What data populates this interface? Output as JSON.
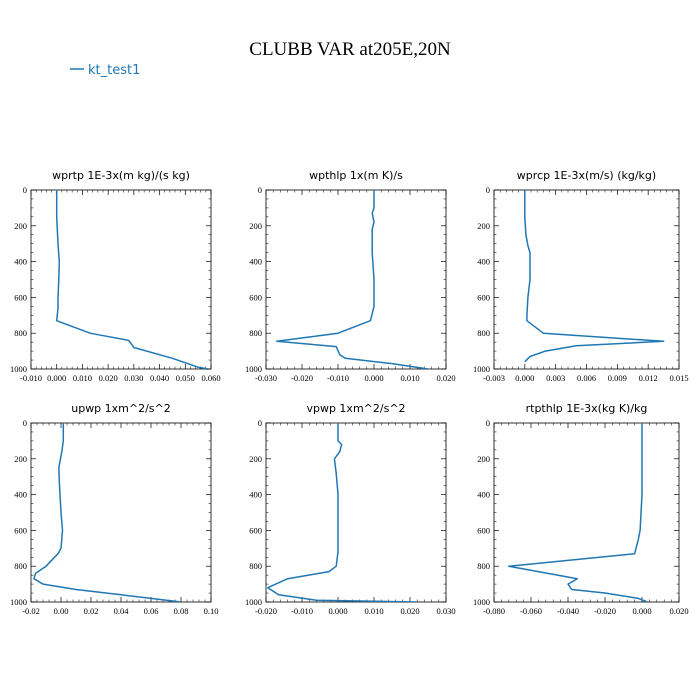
{
  "figure": {
    "title": "CLUBB VAR at205E,20N",
    "legend": {
      "label": "kt_test1",
      "color": "#1f77b4"
    }
  },
  "chart_data": [
    {
      "type": "line",
      "title": "wprtp   1E-3x(m kg)/(s kg)",
      "xlim": [
        -0.01,
        0.06
      ],
      "ylim": [
        1000,
        0
      ],
      "xticks": [
        "-0.010",
        "0.000",
        "0.010",
        "0.020",
        "0.030",
        "0.040",
        "0.050",
        "0.060"
      ],
      "yticks": [
        "0",
        "200",
        "400",
        "600",
        "800",
        "1000"
      ],
      "series": [
        {
          "name": "kt_test1",
          "color": "#1f77b4",
          "x": [
            0.0,
            0.0,
            0.0005,
            0.001,
            0.0008,
            0.0005,
            0.0005,
            0.0,
            0.013,
            0.028,
            0.03,
            0.045,
            0.055,
            0.059
          ],
          "y": [
            0,
            150,
            300,
            400,
            500,
            600,
            660,
            730,
            800,
            840,
            880,
            940,
            990,
            1000
          ]
        }
      ]
    },
    {
      "type": "line",
      "title": "wpthlp   1x(m K)/s",
      "xlim": [
        -0.03,
        0.02
      ],
      "ylim": [
        1000,
        0
      ],
      "xticks": [
        "-0.030",
        "-0.020",
        "-0.010",
        "0.000",
        "0.010",
        "0.020"
      ],
      "yticks": [
        "0",
        "200",
        "400",
        "600",
        "800",
        "1000"
      ],
      "series": [
        {
          "name": "kt_test1",
          "color": "#1f77b4",
          "x": [
            0.0,
            0.0,
            -0.0005,
            0.0,
            -0.0005,
            -0.0005,
            0.0,
            0.0,
            -0.001,
            -0.01,
            -0.027,
            -0.0105,
            -0.0095,
            -0.008,
            0.005,
            0.015
          ],
          "y": [
            0,
            100,
            130,
            180,
            220,
            350,
            500,
            650,
            730,
            800,
            845,
            875,
            920,
            940,
            970,
            1000
          ]
        }
      ]
    },
    {
      "type": "line",
      "title": "wprcp   1E-3x(m/s) (kg/kg)",
      "xlim": [
        -0.003,
        0.015
      ],
      "ylim": [
        1000,
        0
      ],
      "xticks": [
        "-0.003",
        "0.000",
        "0.003",
        "0.006",
        "0.009",
        "0.012",
        "0.015"
      ],
      "yticks": [
        "0",
        "200",
        "400",
        "600",
        "800",
        "1000"
      ],
      "series": [
        {
          "name": "kt_test1",
          "color": "#1f77b4",
          "x": [
            0.0,
            0.0,
            0.0001,
            0.0003,
            0.0005,
            0.0005,
            0.0003,
            0.0002,
            0.0002,
            0.0018,
            0.0135,
            0.005,
            0.002,
            0.0005,
            0.0
          ],
          "y": [
            0,
            150,
            250,
            310,
            350,
            500,
            600,
            700,
            730,
            800,
            845,
            870,
            900,
            930,
            960
          ]
        }
      ]
    },
    {
      "type": "line",
      "title": "upwp   1xm^2/s^2",
      "xlim": [
        -0.02,
        0.1
      ],
      "ylim": [
        1000,
        0
      ],
      "xticks": [
        "-0.02",
        "0.00",
        "0.02",
        "0.04",
        "0.06",
        "0.08",
        "0.10"
      ],
      "yticks": [
        "0",
        "200",
        "400",
        "600",
        "800",
        "1000"
      ],
      "series": [
        {
          "name": "kt_test1",
          "color": "#1f77b4",
          "x": [
            0.0015,
            0.0015,
            0.0005,
            -0.0015,
            -0.001,
            0.0,
            0.001,
            0.0,
            -0.002,
            -0.01,
            -0.017,
            -0.018,
            -0.012,
            0.01,
            0.04,
            0.08
          ],
          "y": [
            0,
            100,
            160,
            250,
            350,
            500,
            600,
            700,
            730,
            800,
            840,
            870,
            900,
            930,
            960,
            1000
          ]
        }
      ]
    },
    {
      "type": "line",
      "title": "vpwp   1xm^2/s^2",
      "xlim": [
        -0.02,
        0.03
      ],
      "ylim": [
        1000,
        0
      ],
      "xticks": [
        "-0.020",
        "-0.010",
        "0.000",
        "0.010",
        "0.020",
        "0.030"
      ],
      "yticks": [
        "0",
        "200",
        "400",
        "600",
        "800",
        "1000"
      ],
      "series": [
        {
          "name": "kt_test1",
          "color": "#1f77b4",
          "x": [
            0.0,
            0.0,
            0.001,
            0.0005,
            -0.001,
            -0.0005,
            0.0,
            0.0,
            0.0,
            -0.0005,
            -0.0025,
            -0.014,
            -0.0195,
            -0.0165,
            -0.006,
            0.022
          ],
          "y": [
            0,
            100,
            120,
            160,
            200,
            280,
            400,
            600,
            720,
            800,
            830,
            870,
            920,
            960,
            990,
            1000
          ]
        }
      ]
    },
    {
      "type": "line",
      "title": "rtpthlp   1E-3x(kg K)/kg",
      "xlim": [
        -0.08,
        0.02
      ],
      "ylim": [
        1000,
        0
      ],
      "xticks": [
        "-0.080",
        "-0.060",
        "-0.040",
        "-0.020",
        "0.000",
        "0.020"
      ],
      "yticks": [
        "0",
        "200",
        "400",
        "600",
        "800",
        "1000"
      ],
      "series": [
        {
          "name": "kt_test1",
          "color": "#1f77b4",
          "x": [
            0.0,
            0.0,
            0.0,
            -0.001,
            -0.002,
            -0.004,
            -0.072,
            -0.035,
            -0.04,
            -0.038,
            -0.02,
            -0.002,
            0.003
          ],
          "y": [
            0,
            200,
            400,
            600,
            650,
            730,
            800,
            870,
            900,
            930,
            950,
            980,
            1000
          ]
        }
      ]
    }
  ]
}
